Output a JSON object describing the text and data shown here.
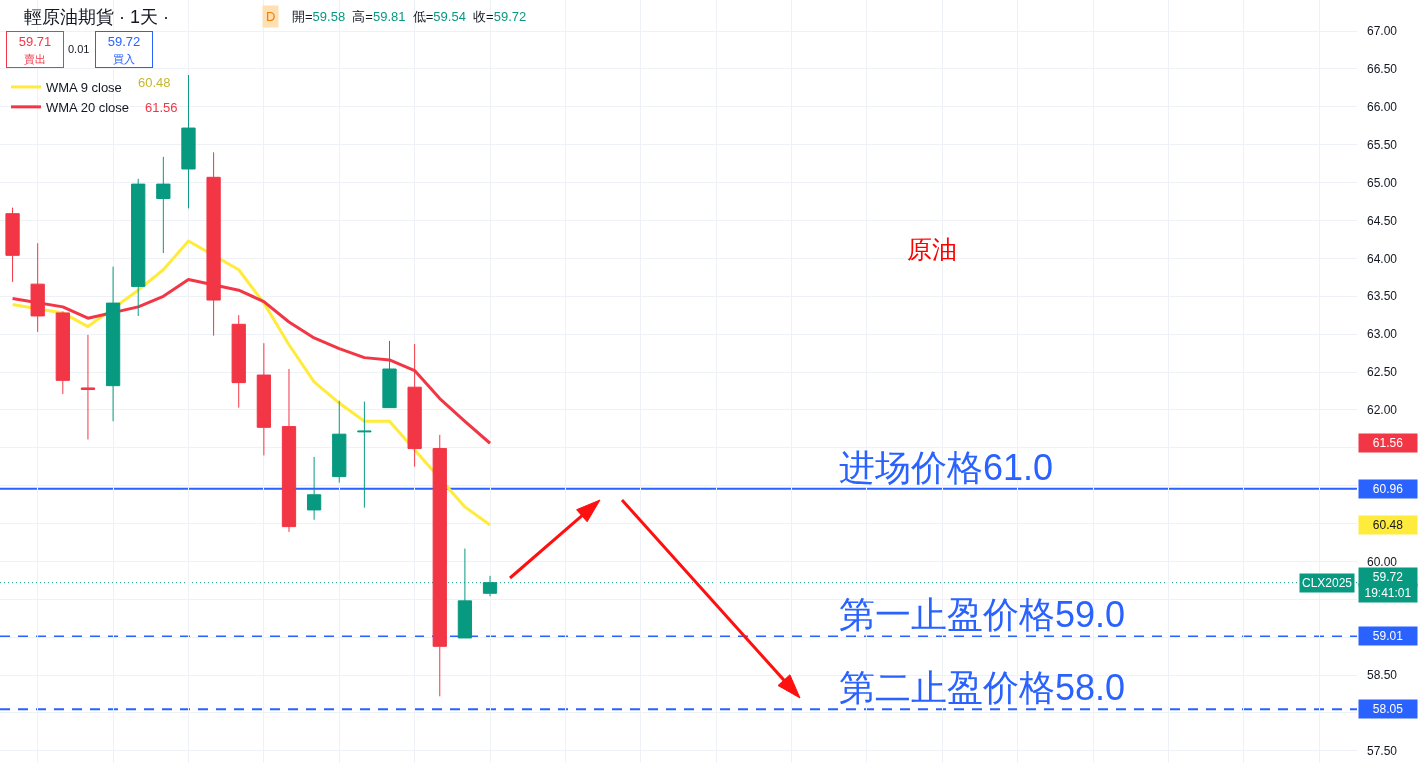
{
  "chart_data": {
    "type": "candlestick",
    "title": "輕原油期貨 · 1天 ·",
    "subtitle": "開=59.58  高=59.81  低=59.54  收=59.72",
    "categories": [
      null,
      null,
      null,
      null,
      null,
      null,
      null,
      null,
      null,
      null,
      null,
      null,
      null,
      null,
      null,
      null,
      null,
      null,
      null,
      null,
      null,
      null,
      null,
      null,
      null,
      null,
      null,
      null,
      null,
      null,
      null,
      null,
      null,
      null,
      null,
      null,
      null,
      null,
      null,
      null,
      null,
      null,
      null,
      null,
      null,
      null,
      null,
      null,
      null,
      null,
      null,
      null,
      null,
      null
    ],
    "ohlc": [
      [
        64.59,
        64.67,
        63.69,
        64.04
      ],
      [
        63.66,
        64.2,
        63.03,
        63.24
      ],
      [
        63.28,
        63.3,
        62.21,
        62.39
      ],
      [
        62.29,
        62.99,
        61.61,
        62.27
      ],
      [
        62.32,
        63.89,
        61.85,
        63.41
      ],
      [
        63.63,
        65.05,
        63.24,
        64.98
      ],
      [
        64.79,
        65.34,
        64.07,
        64.98
      ],
      [
        65.18,
        66.42,
        64.66,
        65.72
      ],
      [
        65.07,
        65.4,
        62.98,
        63.45
      ],
      [
        63.13,
        63.25,
        62.03,
        62.36
      ],
      [
        62.46,
        62.88,
        61.4,
        61.77
      ],
      [
        61.78,
        62.54,
        60.39,
        60.46
      ],
      [
        60.68,
        61.38,
        60.55,
        60.88
      ],
      [
        61.12,
        62.12,
        61.04,
        61.68
      ],
      [
        61.71,
        62.11,
        60.71,
        61.72
      ],
      [
        62.03,
        62.91,
        62.03,
        62.54
      ],
      [
        62.3,
        62.87,
        61.25,
        61.49
      ],
      [
        61.49,
        61.67,
        58.22,
        58.88
      ],
      [
        58.99,
        60.17,
        58.99,
        59.48
      ],
      [
        59.58,
        59.81,
        59.54,
        59.72
      ],
      null,
      null,
      null,
      null,
      null,
      null,
      null,
      null,
      null,
      null,
      null,
      null,
      null,
      null,
      null,
      null,
      null,
      null,
      null,
      null,
      null,
      null,
      null,
      null,
      null,
      null,
      null,
      null,
      null,
      null,
      null,
      null,
      null,
      null
    ],
    "colors": [
      "#f23645",
      "#f23645",
      "#f23645",
      "#f23645",
      "#089981",
      "#089981",
      "#089981",
      "#089981",
      "#f23645",
      "#f23645",
      "#f23645",
      "#f23645",
      "#089981",
      "#089981",
      "#089981",
      "#089981",
      "#f23645",
      "#f23645",
      "#089981",
      "#089981",
      null,
      null,
      null,
      null,
      null,
      null,
      null,
      null,
      null,
      null,
      null,
      null,
      null,
      null,
      null,
      null,
      null,
      null,
      null,
      null,
      null,
      null,
      null,
      null,
      null,
      null,
      null,
      null,
      null,
      null,
      null,
      null,
      null,
      null
    ],
    "series": [
      {
        "name": "WMA 9 close",
        "type": "line",
        "color": "#ffeb3b",
        "values": [
          63.39,
          null,
          63.28,
          63.1,
          null,
          63.58,
          63.85,
          64.23,
          null,
          63.85,
          63.41,
          62.86,
          62.37,
          62.09,
          61.85,
          61.85,
          null,
          null,
          60.72,
          60.48,
          null,
          null,
          null,
          null,
          null,
          null,
          null,
          null,
          null,
          null,
          null,
          null,
          null,
          null,
          null,
          null,
          null,
          null,
          null,
          null,
          null,
          null,
          null,
          null,
          null,
          null,
          null,
          null,
          null,
          null,
          null,
          null,
          null,
          null
        ]
      },
      {
        "name": "WMA 20 close",
        "type": "line",
        "color": "#f23645",
        "values": [
          63.47,
          null,
          63.36,
          63.21,
          null,
          63.36,
          63.5,
          63.72,
          null,
          63.58,
          63.43,
          63.16,
          62.95,
          62.81,
          62.69,
          62.66,
          62.52,
          62.15,
          61.85,
          61.56,
          null,
          null,
          null,
          null,
          null,
          null,
          null,
          null,
          null,
          null,
          null,
          null,
          null,
          null,
          null,
          null,
          null,
          null,
          null,
          null,
          null,
          null,
          null,
          null,
          null,
          null,
          null,
          null,
          null,
          null,
          null,
          null,
          null,
          null
        ]
      }
    ],
    "ylim": [
      57.34,
      67.41
    ],
    "yticks": [
      {
        "value": 57.5,
        "label": "57.50"
      },
      {
        "value": 58.0,
        "label": null
      },
      {
        "value": 58.5,
        "label": "58.50"
      },
      {
        "value": 59.0,
        "label": null
      },
      {
        "value": 59.5,
        "label": null
      },
      {
        "value": 60.0,
        "label": "60.00"
      },
      {
        "value": 60.5,
        "label": null
      },
      {
        "value": 61.0,
        "label": null
      },
      {
        "value": 61.5,
        "label": null
      },
      {
        "value": 62.0,
        "label": "62.00"
      },
      {
        "value": 62.5,
        "label": "62.50"
      },
      {
        "value": 63.0,
        "label": "63.00"
      },
      {
        "value": 63.5,
        "label": "63.50"
      },
      {
        "value": 64.0,
        "label": "64.00"
      },
      {
        "value": 64.5,
        "label": "64.50"
      },
      {
        "value": 65.0,
        "label": "65.00"
      },
      {
        "value": 65.5,
        "label": "65.50"
      },
      {
        "value": 66.0,
        "label": "66.00"
      },
      {
        "value": 66.5,
        "label": "66.50"
      },
      {
        "value": 67.0,
        "label": "67.00"
      }
    ],
    "ref_lines": [
      {
        "axis": "y",
        "value": 60.96,
        "label": "进场价格61.0",
        "color": "#2962ff",
        "line_style": "solid"
      },
      {
        "axis": "y",
        "value": 59.72,
        "label": "CLX2025",
        "color": "#089981",
        "line_style": "dotted"
      },
      {
        "axis": "y",
        "value": 59.01,
        "label": "第一止盈价格59.0",
        "color": "#2962ff",
        "line_style": "dashed"
      },
      {
        "axis": "y",
        "value": 58.05,
        "label": "第二止盈价格58.0",
        "color": "#2962ff",
        "line_style": "dashed"
      }
    ],
    "annotations": [
      "D",
      "59.71\n賣出",
      "0.01",
      "59.72\n買入",
      "60.48",
      "61.56",
      "原油",
      "61.56",
      "60.96",
      "60.48",
      "59.72",
      "19:41:01",
      "59.01",
      "58.05"
    ],
    "grid": true,
    "legend": "top left",
    "tick_labels": "y"
  }
}
